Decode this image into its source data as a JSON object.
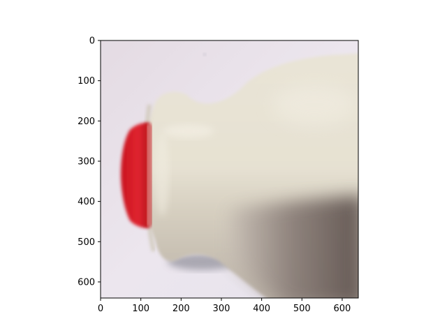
{
  "figure": {
    "background": "#ffffff",
    "axes_color": "#000000"
  },
  "image": {
    "subject": "blurred photo of a milk jug with a red cap",
    "colors": {
      "background": "#e8e2ea",
      "jug_body": "#e2dccb",
      "jug_highlight": "#f0ecdf",
      "jug_shadow": "#a69b93",
      "jug_dark": "#6a5e59",
      "cap_red": "#d8202c",
      "cap_dark": "#b01018"
    }
  },
  "axes": {
    "x_ticks": [
      "0",
      "100",
      "200",
      "300",
      "400",
      "500",
      "600"
    ],
    "y_ticks": [
      "0",
      "100",
      "200",
      "300",
      "400",
      "500",
      "600"
    ]
  }
}
